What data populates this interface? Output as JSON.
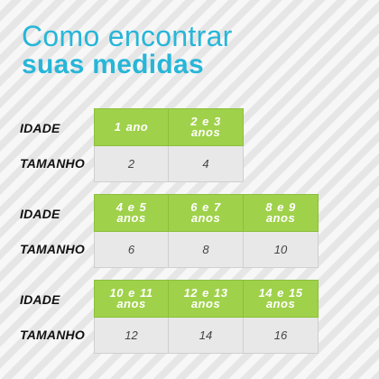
{
  "title": {
    "line1": "Como encontrar",
    "line2": "suas medidas"
  },
  "labels": {
    "age": "IDADE",
    "size": "TAMANHO"
  },
  "tables": [
    {
      "ages": [
        "1 ano",
        "2 e 3 anos"
      ],
      "sizes": [
        "2",
        "4"
      ]
    },
    {
      "ages": [
        "4 e 5 anos",
        "6 e 7 anos",
        "8 e 9 anos"
      ],
      "sizes": [
        "6",
        "8",
        "10"
      ]
    },
    {
      "ages": [
        "10 e 11 anos",
        "12 e 13 anos",
        "14 e 15 anos"
      ],
      "sizes": [
        "12",
        "14",
        "16"
      ]
    }
  ],
  "colors": {
    "title": "#27b6d8",
    "age_cell": "#9fd14a",
    "size_cell": "#e8e8e8"
  }
}
